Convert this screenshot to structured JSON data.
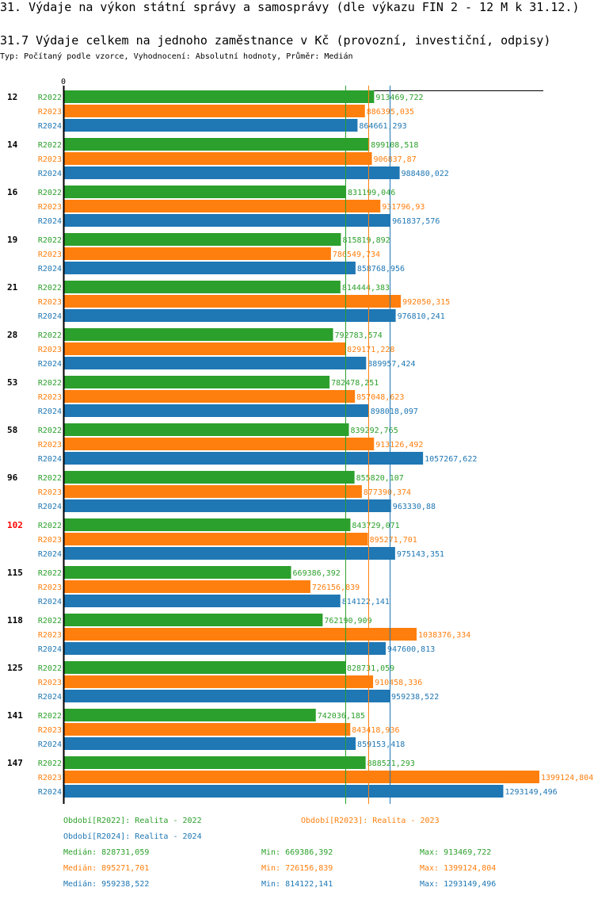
{
  "title": "31. Výdaje na výkon státní správy a samosprávy (dle výkazu FIN 2 - 12 M k 31.12.)",
  "subtitle": "31.7 Výdaje celkem na jednoho zaměstnance v Kč (provozní, investiční, odpisy)",
  "description": "Typ: Počítaný podle vzorce, Vyhodnocení: Absolutní hodnoty, Průměr: Medián",
  "colors": {
    "R2022": "#2ca02c",
    "R2023": "#ff7f0e",
    "R2024": "#1f77b4",
    "highlight": "#ff0000"
  },
  "chart_data": {
    "type": "bar",
    "orientation": "horizontal",
    "x_tick_labels": [
      "0"
    ],
    "xlim": [
      0,
      1399124.804
    ],
    "highlighted_category": "102",
    "categories": [
      "12",
      "14",
      "16",
      "19",
      "21",
      "28",
      "53",
      "58",
      "96",
      "102",
      "115",
      "118",
      "125",
      "141",
      "147"
    ],
    "series": [
      {
        "name": "R2022",
        "values": [
          913469.722,
          899108.518,
          831199.046,
          815819.892,
          814444.383,
          792783.574,
          782478.251,
          839292.765,
          855820.107,
          843729.071,
          669386.392,
          762190.909,
          828731.059,
          742036.185,
          888521.293
        ],
        "labels": [
          "913469,722",
          "899108,518",
          "831199,046",
          "815819,892",
          "814444,383",
          "792783,574",
          "782478,251",
          "839292,765",
          "855820,107",
          "843729,071",
          "669386,392",
          "762190,909",
          "828731,059",
          "742036,185",
          "888521,293"
        ]
      },
      {
        "name": "R2023",
        "values": [
          886395.035,
          906837.87,
          931796.93,
          786549.734,
          992050.315,
          829171.228,
          857048.623,
          913126.492,
          877390.374,
          895271.701,
          726156.839,
          1038376.334,
          910458.336,
          843418.936,
          1399124.804
        ],
        "labels": [
          "886395,035",
          "906837,87",
          "931796,93",
          "786549,734",
          "992050,315",
          "829171,228",
          "857048,623",
          "913126,492",
          "877390,374",
          "895271,701",
          "726156,839",
          "1038376,334",
          "910458,336",
          "843418,936",
          "1399124,804"
        ]
      },
      {
        "name": "R2024",
        "values": [
          864661.293,
          988480.022,
          961837.576,
          858768.956,
          976810.241,
          889957.424,
          898018.097,
          1057267.622,
          963330.88,
          975143.351,
          814122.141,
          947600.813,
          959238.522,
          859153.418,
          1293149.496
        ],
        "labels": [
          "864661,293",
          "988480,022",
          "961837,576",
          "858768,956",
          "976810,241",
          "889957,424",
          "898018,097",
          "1057267,622",
          "963330,88",
          "975143,351",
          "814122,141",
          "947600,813",
          "959238,522",
          "859153,418",
          "1293149,496"
        ]
      }
    ],
    "medians": [
      828731.059,
      895271.701,
      959238.522
    ]
  },
  "legend": {
    "r2022": "Období[R2022]: Realita - 2022",
    "r2023": "Období[R2023]: Realita - 2023",
    "r2024": "Období[R2024]: Realita - 2024"
  },
  "stats": [
    {
      "median": "Medián: 828731,059",
      "min": "Min: 669386,392",
      "max": "Max: 913469,722"
    },
    {
      "median": "Medián: 895271,701",
      "min": "Min: 726156,839",
      "max": "Max: 1399124,804"
    },
    {
      "median": "Medián: 959238,522",
      "min": "Min: 814122,141",
      "max": "Max: 1293149,496"
    }
  ]
}
